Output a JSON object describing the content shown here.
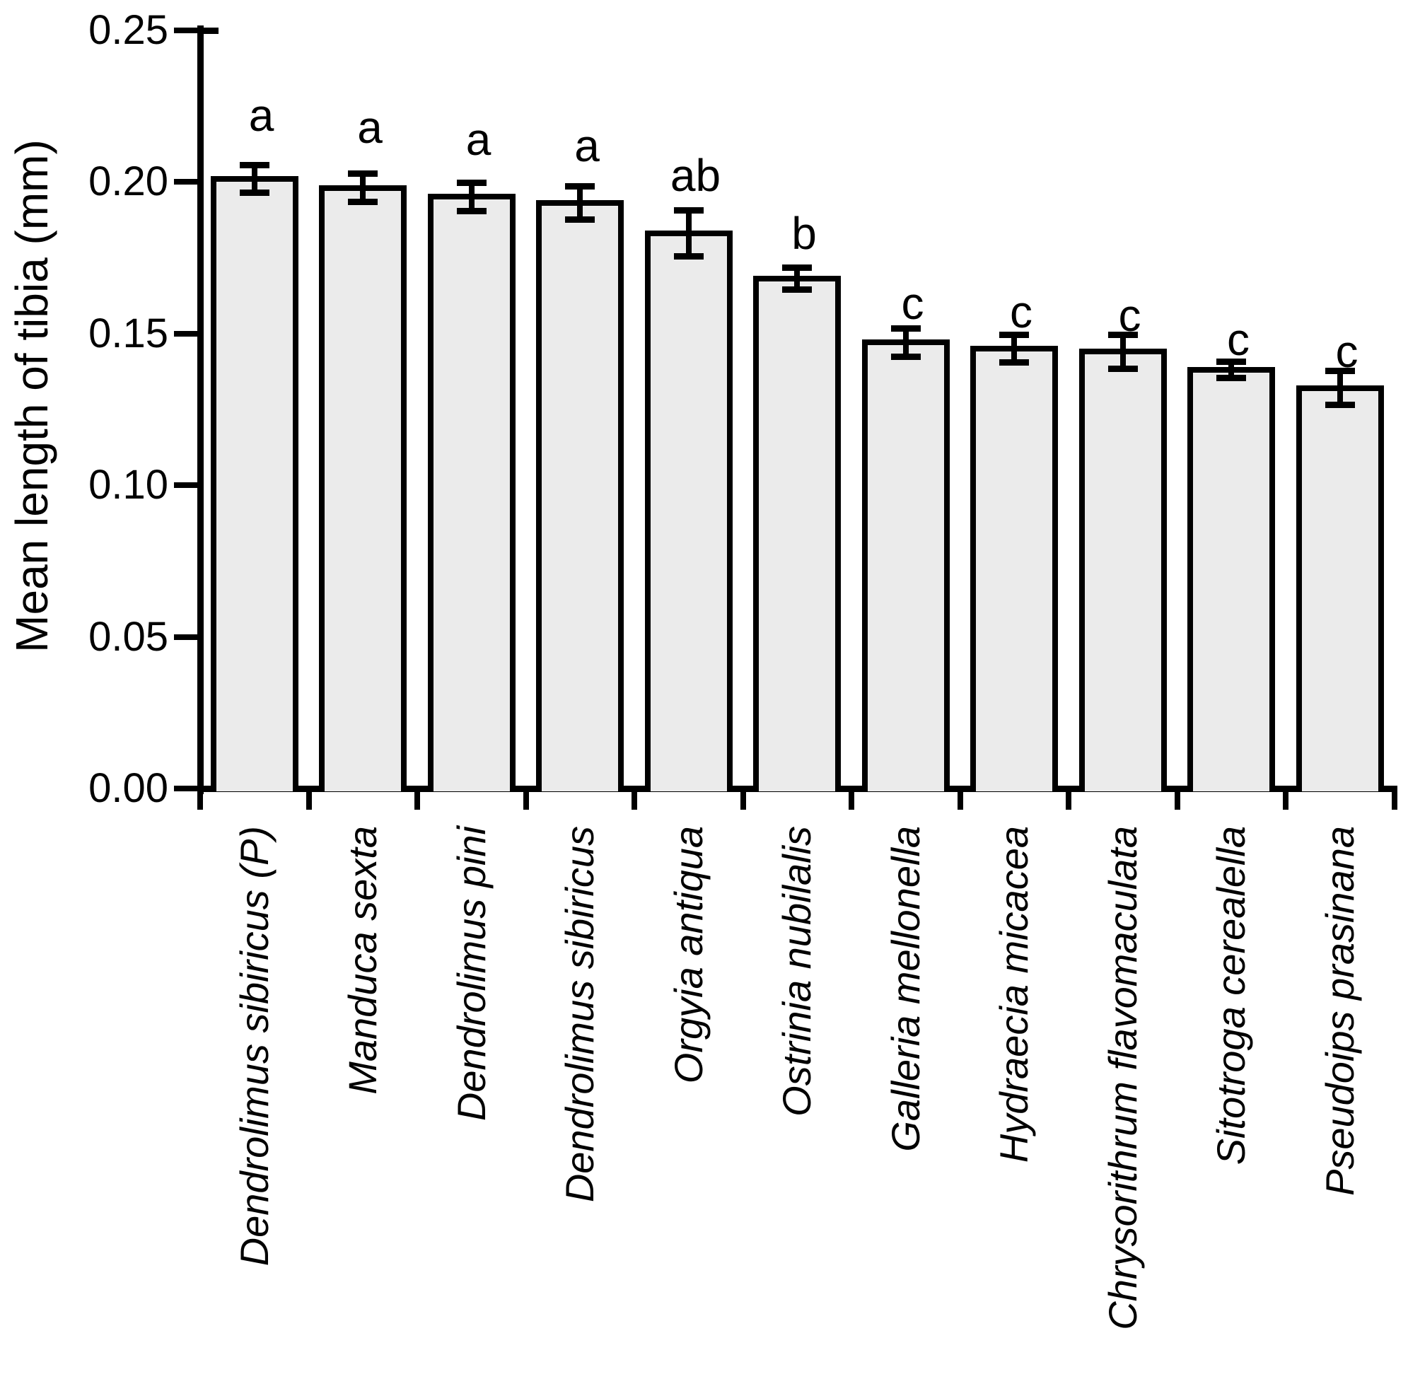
{
  "figure": {
    "background_color": "#ffffff",
    "text_color": "#000000"
  },
  "chart_data": {
    "type": "bar",
    "title": "",
    "xlabel": "",
    "ylabel": "Mean length of tibia (mm)",
    "ylim": [
      0,
      0.25
    ],
    "ytick_values": [
      0.0,
      0.05,
      0.1,
      0.15,
      0.2,
      0.25
    ],
    "ytick_labels": [
      "0.00",
      "0.05",
      "0.10",
      "0.15",
      "0.20",
      "0.25"
    ],
    "grid": "off",
    "legend": "none",
    "bar_fill_color": "#ebebeb",
    "bar_border_color": "#000000",
    "error_bar_color": "#000000",
    "category_style": "italic",
    "categories": [
      "Dendrolimus sibiricus (P)",
      "Manduca sexta",
      "Dendrolimus pini",
      "Dendrolimus sibiricus",
      "Orgyia antiqua",
      "Ostrinia nubilalis",
      "Galleria mellonella",
      "Hydraecia micacea",
      "Chrysorithrum flavomaculata",
      "Sitotroga cerealella",
      "Pseudoips prasinana"
    ],
    "values": [
      0.201,
      0.198,
      0.195,
      0.193,
      0.183,
      0.168,
      0.147,
      0.145,
      0.144,
      0.138,
      0.132
    ],
    "errors": [
      0.004,
      0.004,
      0.004,
      0.005,
      0.007,
      0.003,
      0.004,
      0.004,
      0.005,
      0.002,
      0.005
    ],
    "sig_letters": [
      "a",
      "a",
      "a",
      "a",
      "ab",
      "b",
      "c",
      "c",
      "c",
      "c",
      "c"
    ],
    "sig_letter_y": [
      0.222,
      0.218,
      0.214,
      0.212,
      0.202,
      0.183,
      0.16,
      0.157,
      0.156,
      0.148,
      0.144
    ]
  }
}
